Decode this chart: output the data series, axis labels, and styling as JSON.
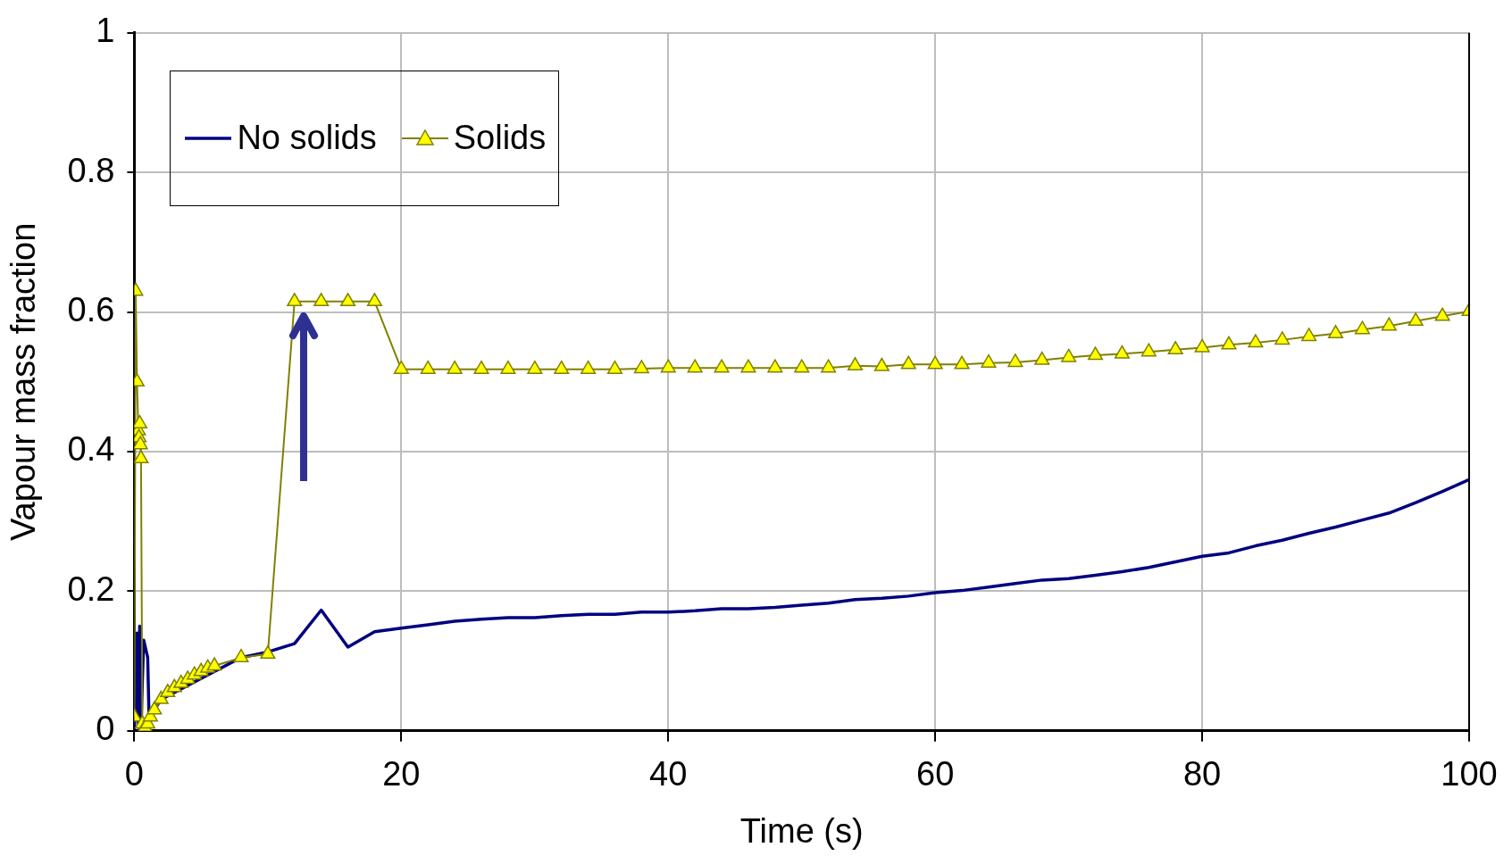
{
  "chart_data": {
    "type": "line",
    "xlabel": "Time (s)",
    "ylabel": "Vapour mass fraction",
    "xlim": [
      0,
      100
    ],
    "xticks": [
      0,
      20,
      40,
      60,
      80,
      100
    ],
    "ylim": [
      0,
      1
    ],
    "yticks": [
      0,
      0.2,
      0.4,
      0.6,
      0.8,
      1
    ],
    "grid": true,
    "legend": "top left",
    "series": [
      {
        "name": "No solids",
        "color": "#000080",
        "marker": "none",
        "x": [
          0,
          0.2,
          0.3,
          0.4,
          0.5,
          0.7,
          0.8,
          1,
          1.1,
          1.5,
          2,
          3,
          4,
          5,
          6,
          8,
          10,
          12,
          14,
          16,
          18,
          20,
          22,
          24,
          26,
          28,
          30,
          32,
          34,
          36,
          38,
          40,
          42,
          44,
          46,
          48,
          50,
          52,
          54,
          56,
          58,
          60,
          62,
          64,
          66,
          68,
          70,
          72,
          74,
          76,
          78,
          80,
          82,
          84,
          86,
          88,
          90,
          92,
          94,
          96,
          98,
          100
        ],
        "values": [
          0,
          0.14,
          0.005,
          0.15,
          0.01,
          0.13,
          null,
          0.105,
          0.02,
          0.03,
          0.045,
          null,
          null,
          null,
          null,
          0.105,
          0.113,
          0.125,
          0.173,
          0.12,
          0.142,
          0.147,
          0.152,
          0.157,
          0.16,
          0.162,
          0.162,
          0.165,
          0.167,
          0.167,
          0.17,
          0.17,
          0.172,
          0.175,
          0.175,
          0.177,
          0.18,
          0.183,
          0.188,
          0.19,
          0.193,
          0.198,
          0.201,
          0.206,
          0.211,
          0.216,
          0.218,
          0.223,
          0.228,
          0.234,
          0.242,
          0.25,
          0.255,
          0.265,
          0.273,
          0.283,
          0.292,
          0.302,
          0.312,
          0.327,
          0.343,
          0.36
        ]
      },
      {
        "name": "Solids",
        "color": "#808000",
        "marker": "triangle",
        "x": [
          0,
          0.1,
          0.2,
          0.3,
          0.35,
          0.4,
          0.45,
          0.5,
          0.6,
          0.8,
          1,
          1.2,
          1.5,
          2,
          2.5,
          3,
          3.5,
          4,
          4.5,
          5,
          5.5,
          6,
          8,
          10,
          12,
          14,
          16,
          18,
          20,
          22,
          24,
          26,
          28,
          30,
          32,
          34,
          36,
          38,
          40,
          42,
          44,
          46,
          48,
          50,
          52,
          54,
          56,
          58,
          60,
          62,
          64,
          66,
          68,
          70,
          72,
          74,
          76,
          78,
          80,
          82,
          84,
          86,
          88,
          90,
          92,
          94,
          96,
          98,
          100
        ],
        "values": [
          0.02,
          0.63,
          0.5,
          0.43,
          0.42,
          0.44,
          0.41,
          0.39,
          0.01,
          0.005,
          0.01,
          0.02,
          0.03,
          0.045,
          0.055,
          0.062,
          0.068,
          0.074,
          0.08,
          0.085,
          0.09,
          0.093,
          0.105,
          0.11,
          0.615,
          0.615,
          0.615,
          0.615,
          0.518,
          0.518,
          0.518,
          0.518,
          0.518,
          0.518,
          0.518,
          0.518,
          0.518,
          0.519,
          0.52,
          0.52,
          0.52,
          0.52,
          0.52,
          0.52,
          0.52,
          0.523,
          0.522,
          0.525,
          0.525,
          0.525,
          0.527,
          0.528,
          0.531,
          0.535,
          0.538,
          0.54,
          0.543,
          0.546,
          0.549,
          0.553,
          0.556,
          0.56,
          0.565,
          0.569,
          0.575,
          0.58,
          0.587,
          0.594,
          0.601
        ]
      }
    ]
  }
}
